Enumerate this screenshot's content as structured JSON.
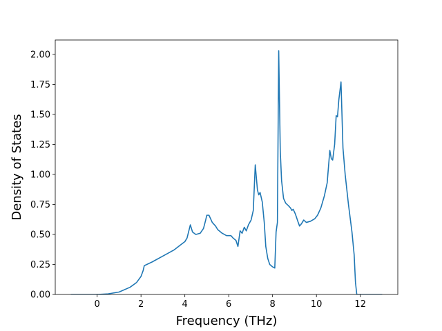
{
  "chart_data": {
    "type": "line",
    "xlabel": "Frequency (THz)",
    "ylabel": "Density of States",
    "color": "#1f77b4",
    "x": [
      -1.2,
      0,
      0.5,
      1,
      1.5,
      1.8,
      2.0,
      2.1,
      2.15,
      2.5,
      3,
      3.5,
      4,
      4.1,
      4.25,
      4.35,
      4.5,
      4.7,
      4.85,
      4.95,
      5.0,
      5.1,
      5.25,
      5.4,
      5.5,
      5.7,
      5.9,
      6.1,
      6.2,
      6.33,
      6.42,
      6.52,
      6.61,
      6.71,
      6.8,
      6.9,
      7.02,
      7.12,
      7.21,
      7.31,
      7.37,
      7.43,
      7.53,
      7.62,
      7.69,
      7.78,
      7.87,
      8.0,
      8.1,
      8.16,
      8.22,
      8.28,
      8.35,
      8.41,
      8.5,
      8.6,
      8.72,
      8.82,
      8.88,
      8.94,
      9.04,
      9.17,
      9.23,
      9.32,
      9.42,
      9.54,
      9.73,
      9.92,
      10.05,
      10.2,
      10.36,
      10.49,
      10.61,
      10.68,
      10.74,
      10.83,
      10.9,
      10.96,
      11.02,
      11.12,
      11.21,
      11.31,
      11.46,
      11.62,
      11.72,
      11.78,
      11.84,
      12.25,
      13.0
    ],
    "values": [
      0,
      0,
      0.005,
      0.02,
      0.06,
      0.1,
      0.15,
      0.2,
      0.24,
      0.27,
      0.32,
      0.37,
      0.44,
      0.47,
      0.58,
      0.52,
      0.5,
      0.51,
      0.55,
      0.62,
      0.66,
      0.66,
      0.6,
      0.57,
      0.54,
      0.51,
      0.49,
      0.49,
      0.47,
      0.45,
      0.4,
      0.53,
      0.51,
      0.56,
      0.53,
      0.58,
      0.62,
      0.7,
      1.08,
      0.87,
      0.83,
      0.85,
      0.77,
      0.6,
      0.4,
      0.3,
      0.25,
      0.23,
      0.22,
      0.52,
      0.6,
      2.03,
      1.2,
      0.95,
      0.8,
      0.76,
      0.74,
      0.72,
      0.7,
      0.71,
      0.67,
      0.6,
      0.57,
      0.59,
      0.62,
      0.6,
      0.61,
      0.63,
      0.66,
      0.72,
      0.82,
      0.93,
      1.2,
      1.13,
      1.12,
      1.25,
      1.49,
      1.48,
      1.62,
      1.77,
      1.22,
      1.0,
      0.75,
      0.52,
      0.33,
      0.1,
      0,
      0,
      0
    ],
    "xlim": [
      -1.91,
      13.71
    ],
    "ylim": [
      0,
      2.12
    ],
    "xticks": [
      0,
      2,
      4,
      6,
      8,
      10,
      12
    ],
    "yticks": [
      {
        "value": 0,
        "label": "0.00"
      },
      {
        "value": 0.25,
        "label": "0.25"
      },
      {
        "value": 0.5,
        "label": "0.50"
      },
      {
        "value": 0.75,
        "label": "0.75"
      },
      {
        "value": 1,
        "label": "1.00"
      },
      {
        "value": 1.25,
        "label": "1.25"
      },
      {
        "value": 1.5,
        "label": "1.50"
      },
      {
        "value": 1.75,
        "label": "1.75"
      },
      {
        "value": 2,
        "label": "2.00"
      }
    ]
  }
}
